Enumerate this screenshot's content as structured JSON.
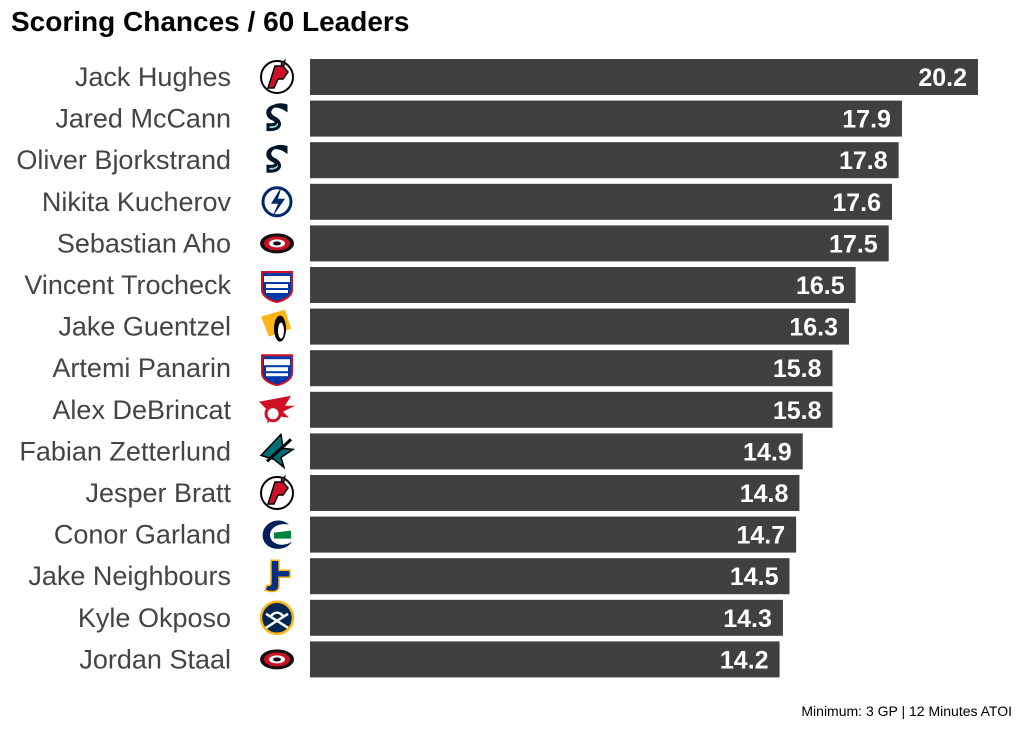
{
  "chart_data": {
    "type": "bar",
    "orientation": "horizontal",
    "title": "Scoring Chances / 60 Leaders",
    "caption": "Minimum: 3 GP | 12 Minutes ATOI",
    "xlabel": "",
    "ylabel": "",
    "xlim": [
      0,
      20.2
    ],
    "grid": false,
    "legend": "none",
    "bar_color": "#404040",
    "categories": [
      "Jack Hughes",
      "Jared McCann",
      "Oliver Bjorkstrand",
      "Nikita Kucherov",
      "Sebastian Aho",
      "Vincent Trocheck",
      "Jake Guentzel",
      "Artemi Panarin",
      "Alex DeBrincat",
      "Fabian Zetterlund",
      "Jesper Bratt",
      "Conor Garland",
      "Jake Neighbours",
      "Kyle Okposo",
      "Jordan Staal"
    ],
    "values": [
      20.2,
      17.9,
      17.8,
      17.6,
      17.5,
      16.5,
      16.3,
      15.8,
      15.8,
      14.9,
      14.8,
      14.7,
      14.5,
      14.3,
      14.2
    ],
    "value_labels": [
      "20.2",
      "17.9",
      "17.8",
      "17.6",
      "17.5",
      "16.5",
      "16.3",
      "15.8",
      "15.8",
      "14.9",
      "14.8",
      "14.7",
      "14.5",
      "14.3",
      "14.2"
    ],
    "team_logos": [
      "devils-logo",
      "kraken-logo",
      "kraken-logo",
      "lightning-logo",
      "hurricanes-logo",
      "rangers-logo",
      "penguins-logo",
      "rangers-logo",
      "red-wings-logo",
      "sharks-logo",
      "devils-logo",
      "canucks-logo",
      "blues-logo",
      "sabres-logo",
      "hurricanes-logo"
    ]
  }
}
